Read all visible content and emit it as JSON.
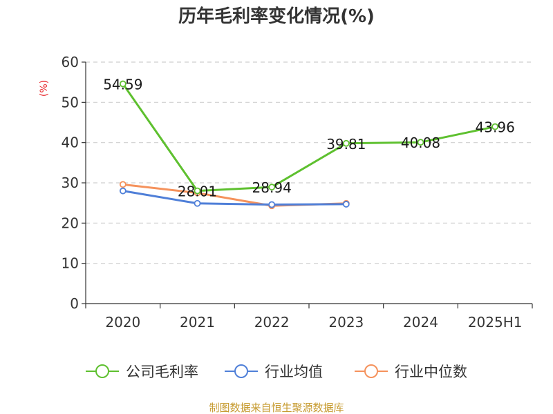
{
  "chart_data": {
    "type": "line",
    "title": "历年毛利率变化情况(%)",
    "unit_label": "(%)",
    "categories": [
      "2020",
      "2021",
      "2022",
      "2023",
      "2024",
      "2025H1"
    ],
    "ylim": [
      0,
      60
    ],
    "yticks": [
      "0",
      "10",
      "20",
      "30",
      "40",
      "50",
      "60"
    ],
    "grid": true,
    "legend_position": "bottom",
    "series": [
      {
        "name": "公司毛利率",
        "color": "#5ec02f",
        "values": [
          54.59,
          28.01,
          28.94,
          39.81,
          40.08,
          43.96
        ],
        "labels": [
          "54.59",
          "28.01",
          "28.94",
          "39.81",
          "40.08",
          "43.96"
        ]
      },
      {
        "name": "行业均值",
        "color": "#4f7fd8",
        "values": [
          28.0,
          24.9,
          24.6,
          24.7,
          null,
          null
        ]
      },
      {
        "name": "行业中位数",
        "color": "#f5925c",
        "values": [
          29.6,
          27.5,
          24.3,
          24.9,
          null,
          null
        ]
      }
    ],
    "source": "制图数据来自恒生聚源数据库"
  }
}
